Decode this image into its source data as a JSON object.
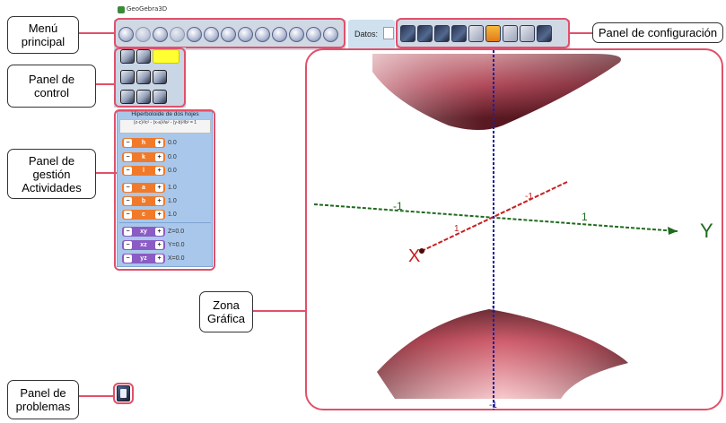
{
  "app": {
    "title": "GeoGebra3D"
  },
  "toolbar": {
    "datos_label": "Datos:"
  },
  "callouts": {
    "menu_principal": "Menú\nprincipal",
    "panel_control": "Panel de\ncontrol",
    "panel_actividades": "Panel de\ngestión\nActividades",
    "panel_configuracion": "Panel de configuración",
    "zona_grafica": "Zona\nGráfica",
    "panel_problemas": "Panel de\nproblemas"
  },
  "activities": {
    "title": "Hiperboloide de dos hojes",
    "formula": "(z-c)²/c² - (x-a)²/a² - (y-b)²/b² = 1",
    "params": [
      {
        "name": "h",
        "value": "0.0",
        "color": "orange"
      },
      {
        "name": "k",
        "value": "0.0",
        "color": "orange"
      },
      {
        "name": "l",
        "value": "0.0",
        "color": "orange"
      },
      {
        "name": "a",
        "value": "1.0",
        "color": "orange"
      },
      {
        "name": "b",
        "value": "1.0",
        "color": "orange"
      },
      {
        "name": "c",
        "value": "1.0",
        "color": "orange"
      },
      {
        "name": "xy",
        "value": "Z=0.0",
        "color": "purple"
      },
      {
        "name": "xz",
        "value": "Y=0.0",
        "color": "purple"
      },
      {
        "name": "yz",
        "value": "X=0.0",
        "color": "purple"
      }
    ]
  },
  "graph": {
    "axis_labels": {
      "x": "X",
      "y": "Y"
    },
    "tick_labels": {
      "x_pos": "1",
      "x_neg": "-1",
      "y_pos": "1",
      "y_neg": "-1",
      "z_pos": "1",
      "z_neg": "-1"
    }
  },
  "colors": {
    "callout_line": "#e0506a",
    "x_axis": "#c81e1e",
    "y_axis": "#1f6b1f",
    "z_axis": "#1f1fa0"
  }
}
